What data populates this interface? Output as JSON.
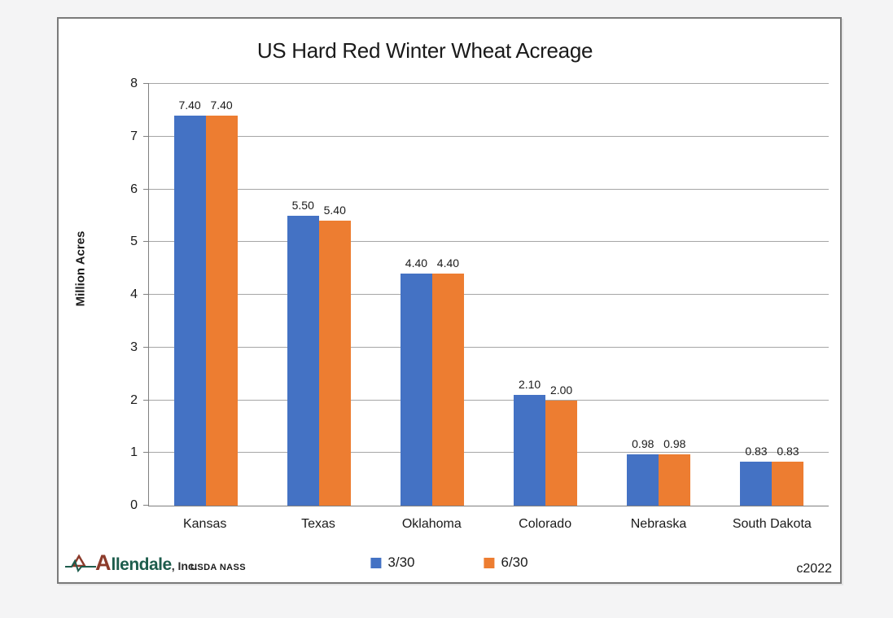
{
  "chart_data": {
    "type": "bar",
    "title": "US Hard Red Winter Wheat Acreage",
    "xlabel": "",
    "ylabel": "Million Acres",
    "ylim": [
      0,
      8
    ],
    "ytick_step": 1,
    "grid": true,
    "legend_position": "bottom",
    "categories": [
      "Kansas",
      "Texas",
      "Oklahoma",
      "Colorado",
      "Nebraska",
      "South Dakota"
    ],
    "series": [
      {
        "name": "3/30",
        "color": "#4472C4",
        "values": [
          7.4,
          5.5,
          4.4,
          2.1,
          0.98,
          0.83
        ],
        "labels": [
          "7.40",
          "5.50",
          "4.40",
          "2.10",
          "0.98",
          "0.83"
        ]
      },
      {
        "name": "6/30",
        "color": "#ED7D31",
        "values": [
          7.4,
          5.4,
          4.4,
          2.0,
          0.98,
          0.83
        ],
        "labels": [
          "7.40",
          "5.40",
          "4.40",
          "2.00",
          "0.98",
          "0.83"
        ]
      }
    ]
  },
  "footer": {
    "logo": {
      "initial": "A",
      "rest": "llendale",
      "suffix": ", Inc."
    },
    "source": "USDA NASS",
    "copyright": "c2022"
  },
  "colors": {
    "series_blue": "#4472C4",
    "series_orange": "#ED7D31",
    "gridline": "#A6A6A6",
    "axis": "#808080",
    "chart_border": "#7A7A7A",
    "logo_green": "#1D5C4C",
    "logo_red": "#8C3B2B"
  }
}
